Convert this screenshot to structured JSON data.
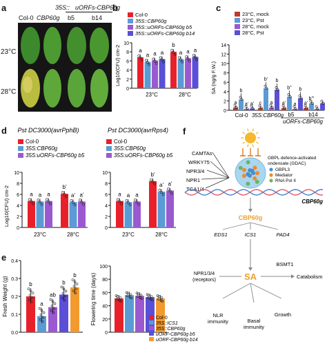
{
  "panels": {
    "a": {
      "letter": "a",
      "header_top": "35S::",
      "header_top2": "uORFs-CBP60g",
      "col0": "Col-0",
      "cbp": "CBP60g",
      "b5": "b5",
      "b14": "b14",
      "row1": "23°C",
      "row2": "28°C",
      "colors": {
        "bg": "#141414",
        "leaf": "#3f8a2a",
        "leaf_light": "#6aae3a",
        "leaf_sick": "#c9c24a"
      }
    },
    "b": {
      "letter": "b",
      "ylabel": "Log10(CFU) cm-2",
      "yticks": [
        "0",
        "2",
        "4",
        "6",
        "8",
        "10"
      ],
      "legend": [
        "Col-0",
        "35S::CBP60g",
        "35S::uORFs-CBP60g b5",
        "35S::uORFs-CBP60g b14"
      ],
      "xcats": [
        "23°C",
        "28°C"
      ],
      "sig": [
        [
          "a",
          "a",
          "a",
          "a"
        ],
        [
          "b",
          "a",
          "a",
          "a"
        ]
      ]
    },
    "c": {
      "letter": "c",
      "ylabel": "SA (ng/g F.W.)",
      "yticks": [
        "0",
        "2",
        "4",
        "6",
        "8",
        "10",
        "12",
        "14"
      ],
      "legend": [
        "23°C, mock",
        "23°C, Pst",
        "28°C, mock",
        "28°C, Pst"
      ],
      "xcats": [
        "Col-0",
        "35S:CBP60g",
        "b5",
        "b14"
      ],
      "xgroup": "uORFs-CBP60g",
      "sig": [
        "a",
        "b",
        "a'",
        "a'",
        "c",
        "b'",
        "a",
        "b",
        "a'",
        "b''",
        "a",
        "b",
        "a'",
        "b'''"
      ]
    },
    "d": {
      "letter": "d",
      "titles": [
        "Pst DC3000(avrPphB)",
        "Pst DC3000(avrRps4)"
      ],
      "ylabel": "Log10(CFU) cm-2",
      "legend_left": [
        "Col-0",
        "35S:CBP60g",
        "35S:uORFs-CBP60g b5"
      ],
      "legend_right": [
        "Col-0",
        "35S:CBP60g",
        "35S:uORFs-CBP60g b5"
      ],
      "xcats": [
        "23°C",
        "28°C"
      ],
      "sig_left": [
        "a",
        "a",
        "a",
        "b'",
        "a'",
        "a'"
      ],
      "sig_right": [
        "a",
        "a",
        "a",
        "b'",
        "a'",
        "a'"
      ]
    },
    "e": {
      "letter": "e",
      "ylabel_left": "Fresh Weight (g)",
      "ylabel_right": "Flowering time (days)",
      "yticks_left": [
        "0.0",
        "0.1",
        "0.2",
        "0.3",
        "0.4"
      ],
      "yticks_right": [
        "0",
        "20",
        "40",
        "60",
        "80",
        "100"
      ],
      "sig_left": [
        "b",
        "a",
        "ab",
        "b",
        "b"
      ],
      "legend": [
        "Col-0",
        "35S::ICS1",
        "35S::CBP60g",
        "uORF-CBP60g b5",
        "uORF-CBP60g b14"
      ]
    },
    "f": {
      "letter": "f",
      "tfs": [
        "CAMTAs",
        "WRKY75",
        "NPR3/4",
        "NPR1",
        "TGA1/4"
      ],
      "gdac_title": "GBPL defence-activated condensate (GDAC)",
      "gdac_items": [
        "GBPL3",
        "Mediator",
        "RNA Pol II"
      ],
      "gene": "CBP60g",
      "protein": "CBP60g",
      "targets": [
        "EDS1",
        "ICS1",
        "PAD4"
      ],
      "sa": "SA",
      "bsmt": "BSMT1",
      "catabolism": "Catabolism",
      "receptors": "NPR1/3/4 (receptors)",
      "outputs": [
        "NLR immunity",
        "Basal immunity",
        "Growth"
      ]
    }
  },
  "colors": {
    "red": "#e8202a",
    "blue": "#5b9bd5",
    "purple": "#9b59d0",
    "violet": "#5a4fd6",
    "orange": "#f29a2e",
    "darkred": "#c0392b",
    "sa_orange": "#f0a030"
  },
  "chart_data": [
    {
      "panel": "b",
      "type": "bar",
      "categories": [
        "23°C",
        "28°C"
      ],
      "series": [
        {
          "name": "Col-0",
          "values": [
            6.8,
            8.0
          ]
        },
        {
          "name": "35S::CBP60g",
          "values": [
            5.8,
            6.4
          ]
        },
        {
          "name": "35S::uORFs-CBP60g b5",
          "values": [
            6.1,
            6.6
          ]
        },
        {
          "name": "35S::uORFs-CBP60g b14",
          "values": [
            6.4,
            6.9
          ]
        }
      ],
      "ylim": [
        0,
        10
      ]
    },
    {
      "panel": "c",
      "type": "bar",
      "categories": [
        "Col-0",
        "35S:CBP60g",
        "b5",
        "b14"
      ],
      "series": [
        {
          "name": "23°C, mock",
          "values": [
            0.6,
            0.5,
            0.5,
            0.5
          ]
        },
        {
          "name": "23°C, Pst",
          "values": [
            2.3,
            4.7,
            2.9,
            1.5
          ]
        },
        {
          "name": "28°C, mock",
          "values": [
            0.3,
            0.6,
            0.3,
            0.3
          ]
        },
        {
          "name": "28°C, Pst",
          "values": [
            0.4,
            4.4,
            2.6,
            1.5
          ]
        }
      ],
      "ylim": [
        0,
        14
      ]
    },
    {
      "panel": "d-left",
      "type": "bar",
      "categories": [
        "23°C",
        "28°C"
      ],
      "series": [
        {
          "name": "Col-0",
          "values": [
            4.8,
            6.1
          ]
        },
        {
          "name": "35S:CBP60g",
          "values": [
            4.7,
            4.6
          ]
        },
        {
          "name": "35S:uORFs-CBP60g b5",
          "values": [
            4.8,
            4.7
          ]
        }
      ],
      "ylim": [
        0,
        10
      ]
    },
    {
      "panel": "d-right",
      "type": "bar",
      "categories": [
        "23°C",
        "28°C"
      ],
      "series": [
        {
          "name": "Col-0",
          "values": [
            4.8,
            8.4
          ]
        },
        {
          "name": "35S:CBP60g",
          "values": [
            4.6,
            6.5
          ]
        },
        {
          "name": "35S:uORFs-CBP60g b5",
          "values": [
            4.7,
            6.7
          ]
        }
      ],
      "ylim": [
        0,
        10
      ]
    },
    {
      "panel": "e-left",
      "type": "bar",
      "categories": [
        "Col-0",
        "35S::ICS1",
        "35S::CBP60g",
        "uORF-CBP60g b5",
        "uORF-CBP60g b14"
      ],
      "values": [
        0.2,
        0.09,
        0.14,
        0.21,
        0.25
      ],
      "ylim": [
        0,
        0.4
      ]
    },
    {
      "panel": "e-right",
      "type": "bar",
      "categories": [
        "Col-0",
        "35S::ICS1",
        "35S::CBP60g",
        "uORF-CBP60g b5",
        "uORF-CBP60g b14"
      ],
      "values": [
        51,
        56,
        55,
        53,
        51
      ],
      "ylim": [
        0,
        100
      ]
    }
  ]
}
